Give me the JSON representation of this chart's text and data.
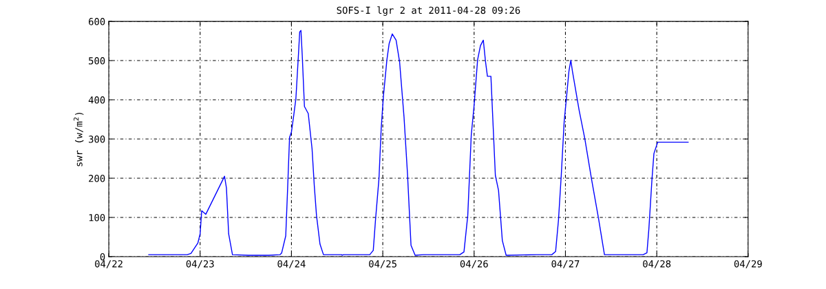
{
  "chart_data": {
    "type": "line",
    "title": "SOFS-I lgr 2 at 2011-04-28 09:26",
    "ylabel": "swr (w/m$^{2}$)",
    "xlim": [
      "2011-04-22",
      "2011-04-29"
    ],
    "xticks": [
      {
        "value": "2011-04-22",
        "label": "04/22"
      },
      {
        "value": "2011-04-23",
        "label": "04/23"
      },
      {
        "value": "2011-04-24",
        "label": "04/24"
      },
      {
        "value": "2011-04-25",
        "label": "04/25"
      },
      {
        "value": "2011-04-26",
        "label": "04/26"
      },
      {
        "value": "2011-04-27",
        "label": "04/27"
      },
      {
        "value": "2011-04-28",
        "label": "04/28"
      },
      {
        "value": "2011-04-29",
        "label": "04/29"
      }
    ],
    "ylim": [
      0,
      600
    ],
    "yticks": [
      0,
      100,
      200,
      300,
      400,
      500,
      600
    ],
    "grid": true,
    "marker": "none",
    "line_style": "solid",
    "x": [
      "2011-04-22T10:30",
      "2011-04-22T20:35",
      "2011-04-22T21:35",
      "2011-04-22T23:25",
      "2011-04-23T00:00",
      "2011-04-23T00:25",
      "2011-04-23T01:30",
      "2011-04-23T06:25",
      "2011-04-23T06:55",
      "2011-04-23T07:30",
      "2011-04-23T08:30",
      "2011-04-23T12:45",
      "2011-04-23T18:00",
      "2011-04-23T21:00",
      "2011-04-23T21:25",
      "2011-04-23T22:30",
      "2011-04-23T23:00",
      "2011-04-23T23:30",
      "2011-04-24T00:00",
      "2011-04-24T00:35",
      "2011-04-24T01:10",
      "2011-04-24T01:50",
      "2011-04-24T02:10",
      "2011-04-24T02:30",
      "2011-04-24T02:50",
      "2011-04-24T03:25",
      "2011-04-24T04:25",
      "2011-04-24T05:25",
      "2011-04-24T06:00",
      "2011-04-24T06:35",
      "2011-04-24T07:30",
      "2011-04-24T08:25",
      "2011-04-24T13:10",
      "2011-04-24T13:20",
      "2011-04-24T13:40",
      "2011-04-24T20:35",
      "2011-04-24T21:30",
      "2011-04-24T22:05",
      "2011-04-24T23:00",
      "2011-04-24T23:35",
      "2011-04-25T00:10",
      "2011-04-25T01:05",
      "2011-04-25T01:40",
      "2011-04-25T02:30",
      "2011-04-25T03:30",
      "2011-04-25T04:25",
      "2011-04-25T05:35",
      "2011-04-25T06:30",
      "2011-04-25T07:25",
      "2011-04-25T08:30",
      "2011-04-25T10:40",
      "2011-04-25T20:15",
      "2011-04-25T21:20",
      "2011-04-25T22:20",
      "2011-04-25T23:15",
      "2011-04-26T00:00",
      "2011-04-26T00:55",
      "2011-04-26T01:40",
      "2011-04-26T02:25",
      "2011-04-26T03:00",
      "2011-04-26T03:30",
      "2011-04-26T04:25",
      "2011-04-26T05:00",
      "2011-04-26T05:35",
      "2011-04-26T06:25",
      "2011-04-26T07:25",
      "2011-04-26T08:25",
      "2011-04-26T16:25",
      "2011-04-26T20:25",
      "2011-04-26T21:25",
      "2011-04-26T22:10",
      "2011-04-26T22:55",
      "2011-04-26T23:40",
      "2011-04-27T00:05",
      "2011-04-27T00:55",
      "2011-04-27T01:25",
      "2011-04-27T01:50",
      "2011-04-27T03:35",
      "2011-04-27T05:05",
      "2011-04-27T06:50",
      "2011-04-27T08:40",
      "2011-04-27T10:15",
      "2011-04-27T20:25",
      "2011-04-27T21:25",
      "2011-04-27T21:55",
      "2011-04-27T22:45",
      "2011-04-27T23:15",
      "2011-04-28T00:15",
      "2011-04-28T08:15"
    ],
    "series": [
      {
        "color": "#0000ff",
        "values": [
          5,
          5,
          8,
          35,
          58,
          117,
          108,
          205,
          175,
          58,
          5,
          3.5,
          3.5,
          5,
          9,
          53,
          175,
          304,
          318,
          359,
          403,
          514,
          573,
          577,
          514,
          383,
          365,
          275,
          181,
          105,
          32,
          5,
          5,
          3.5,
          5,
          5,
          16,
          93,
          199,
          327,
          409,
          502,
          543,
          568,
          552,
          497,
          356,
          210,
          29,
          3.5,
          5,
          5,
          12,
          105,
          310,
          386,
          502,
          538,
          552,
          497,
          460,
          460,
          333,
          207,
          169,
          41,
          3.5,
          5,
          5,
          13,
          93,
          210,
          345,
          386,
          473,
          501,
          473,
          374,
          301,
          199,
          99,
          5,
          5,
          10,
          70,
          199,
          263,
          292,
          292
        ]
      }
    ]
  }
}
